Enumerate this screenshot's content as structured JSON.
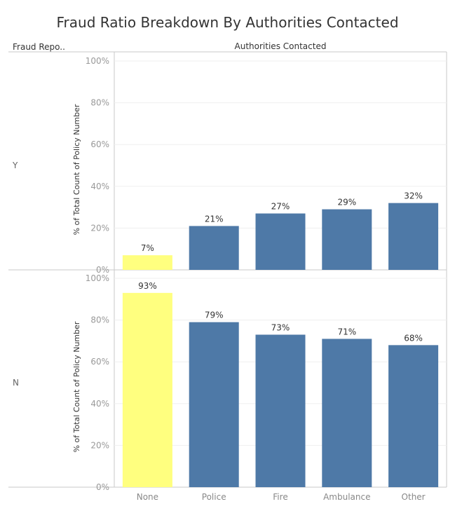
{
  "title": "Fraud Ratio Breakdown By Authorities Contacted",
  "row_header": "Fraud Repo..",
  "column_header": "Authorities Contacted",
  "colors": {
    "highlight": "#ffff7f",
    "bar": "#4e79a7",
    "grid": "#efefef",
    "axis": "#c8c8c8"
  },
  "chart_data": {
    "type": "bar",
    "categories": [
      "None",
      "Police",
      "Fire",
      "Ambulance",
      "Other"
    ],
    "ylabel": "% of Total Count of Policy Number",
    "ylim": [
      0,
      100
    ],
    "yticks": [
      "0%",
      "20%",
      "40%",
      "60%",
      "80%",
      "100%"
    ],
    "grid": true,
    "panels": [
      {
        "row": "Y",
        "values": [
          7,
          21,
          27,
          29,
          32
        ],
        "labels": [
          "7%",
          "21%",
          "27%",
          "29%",
          "32%"
        ]
      },
      {
        "row": "N",
        "values": [
          93,
          79,
          73,
          71,
          68
        ],
        "labels": [
          "93%",
          "79%",
          "73%",
          "71%",
          "68%"
        ]
      }
    ],
    "highlight_category": "None"
  }
}
